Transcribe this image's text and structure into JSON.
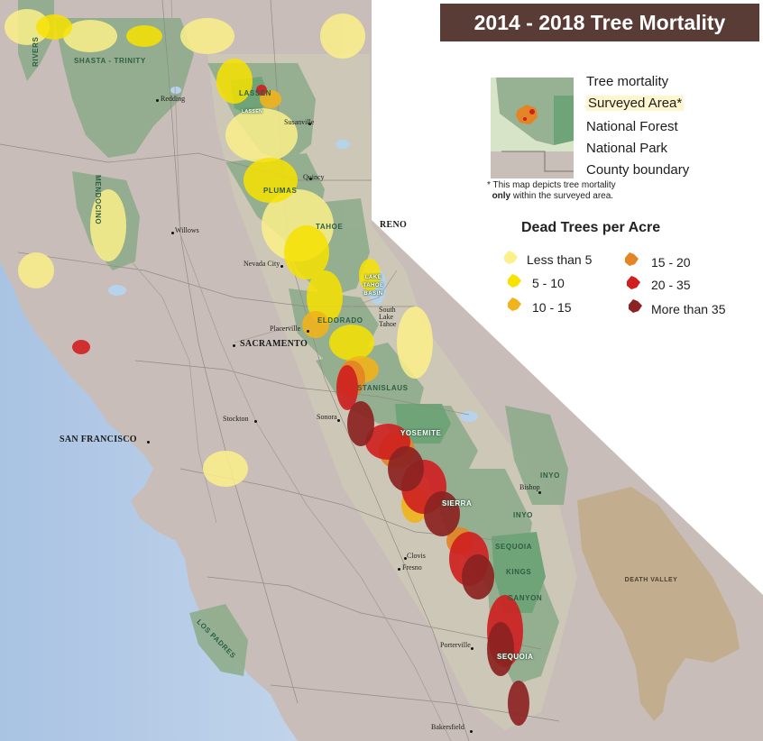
{
  "title": "2014 - 2018 Tree Mortality",
  "legend": {
    "layers": [
      {
        "label": "Tree mortality",
        "icon": "tree-mortality-swatch"
      },
      {
        "label": "Surveyed Area*",
        "icon": "surveyed-area-swatch"
      },
      {
        "label": "National Forest",
        "icon": "national-forest-swatch"
      },
      {
        "label": "National Park",
        "icon": "national-park-swatch"
      },
      {
        "label": "County boundary",
        "icon": "county-boundary-swatch"
      }
    ],
    "note_line1": "* This map depicts tree mortality",
    "note_bold": "only",
    "note_line2": " within the surveyed area.",
    "density_title": "Dead Trees per Acre",
    "classes": [
      {
        "label": "Less than 5",
        "color": "#fbf08a"
      },
      {
        "label": "5 - 10",
        "color": "#f7e200"
      },
      {
        "label": "10 - 15",
        "color": "#f1b31b"
      },
      {
        "label": "15 - 20",
        "color": "#e48424"
      },
      {
        "label": "20 - 35",
        "color": "#cf1f1f"
      },
      {
        "label": "More than 35",
        "color": "#8c2322"
      }
    ]
  },
  "cities": {
    "redding": "Redding",
    "susanville": "Susanville",
    "quincy": "Quincy",
    "willows": "Willows",
    "nevada_city": "Nevada City",
    "reno": "RENO",
    "placerville": "Placerville",
    "south_lake_tahoe": "South Lake Tahoe",
    "sacramento": "SACRAMENTO",
    "stockton": "Stockton",
    "sonora": "Sonora",
    "san_francisco": "SAN FRANCISCO",
    "bishop": "Bishop",
    "clovis": "Clovis",
    "fresno": "Fresno",
    "porterville": "Porterville",
    "bakersfield": "Bakersfield"
  },
  "forests": {
    "six_rivers": "RIVERS",
    "shasta_trinity": "SHASTA - TRINITY",
    "lassen": "LASSEN",
    "lassen_park": "LASSEN",
    "plumas": "PLUMAS",
    "mendocino": "MENDOCINO",
    "tahoe": "TAHOE",
    "lake_tahoe_basin": "LAKE TAHOE BASIN",
    "eldorado": "ELDORADO",
    "stanislaus": "STANISLAUS",
    "yosemite": "YOSEMITE",
    "inyo": "INYO",
    "inyo2": "INYO",
    "sierra": "SIERRA",
    "sequoia": "SEQUOIA",
    "kings": "KINGS",
    "canyon": "CANYON",
    "sequoia2": "SEQUOIA",
    "los_padres": "LOS PADRES",
    "death_valley": "DEATH VALLEY"
  },
  "colors": {
    "ocean": "#d6e3f1",
    "land": "#c8bdb8",
    "national_forest": "#8fac8c",
    "national_park": "#5f9d6a",
    "surveyed_area": "#d4e0c8",
    "desert_park": "#c2ae8f",
    "title_bg": "#5a3c36"
  }
}
